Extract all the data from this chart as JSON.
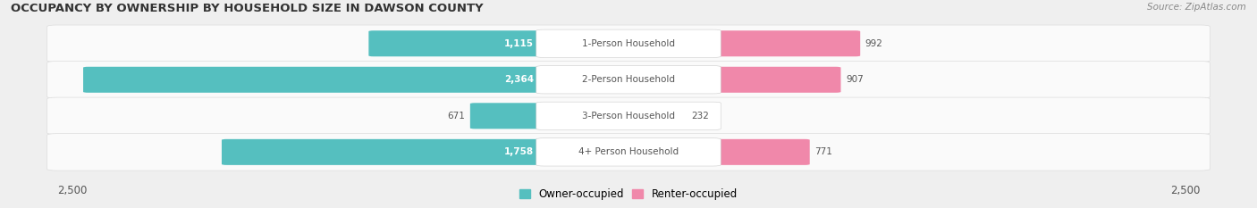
{
  "title": "OCCUPANCY BY OWNERSHIP BY HOUSEHOLD SIZE IN DAWSON COUNTY",
  "source": "Source: ZipAtlas.com",
  "categories": [
    "1-Person Household",
    "2-Person Household",
    "3-Person Household",
    "4+ Person Household"
  ],
  "owner_values": [
    1115,
    2364,
    671,
    1758
  ],
  "renter_values": [
    992,
    907,
    232,
    771
  ],
  "max_val": 2500,
  "owner_color": "#55BFBF",
  "renter_color": "#F088AA",
  "bg_color": "#EFEFEF",
  "row_bg_color": "#FAFAFA",
  "label_bg_color": "#FFFFFF",
  "title_fontsize": 9.5,
  "source_fontsize": 7.5,
  "bar_label_fontsize": 7.5,
  "category_label_fontsize": 7.5,
  "axis_label_fontsize": 8.5,
  "legend_fontsize": 8.5,
  "owner_label_inside_color": "#FFFFFF",
  "owner_label_outside_color": "#555555",
  "renter_label_color": "#555555",
  "category_label_color": "#555555"
}
